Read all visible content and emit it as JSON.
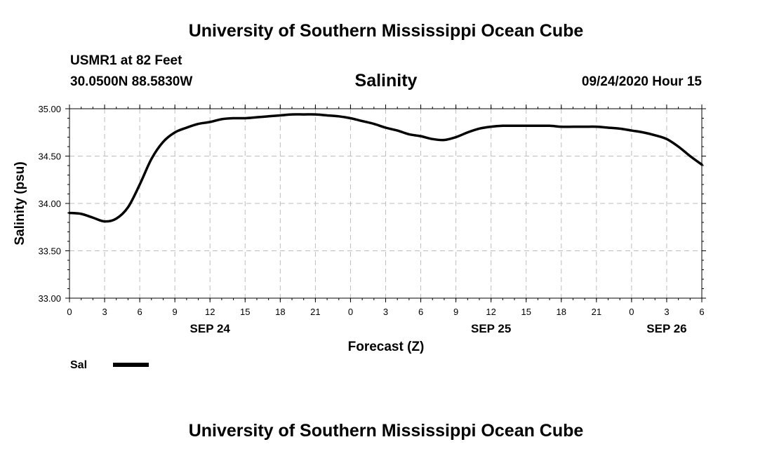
{
  "header": {
    "title": "University of Southern Mississippi Ocean Cube",
    "station": "USMR1 at 82 Feet",
    "coords": "30.0500N 88.5830W",
    "datetime": "09/24/2020 Hour 15"
  },
  "footer": {
    "title": "University of Southern Mississippi Ocean Cube"
  },
  "chart_data": {
    "type": "line",
    "title": "Salinity",
    "xlabel": "Forecast (Z)",
    "ylabel": "Salinity (psu)",
    "ylim": [
      33.0,
      35.0
    ],
    "xlim": [
      0,
      54
    ],
    "yticks": [
      "33.00",
      "33.50",
      "34.00",
      "34.50",
      "35.00"
    ],
    "ytick_values": [
      33.0,
      33.5,
      34.0,
      34.5,
      35.0
    ],
    "xticks": [
      "0",
      "3",
      "6",
      "9",
      "12",
      "15",
      "18",
      "21",
      "0",
      "3",
      "6",
      "9",
      "12",
      "15",
      "18",
      "21",
      "0",
      "3",
      "6"
    ],
    "date_labels": [
      {
        "label": "SEP 24",
        "hour": 12
      },
      {
        "label": "SEP 25",
        "hour": 36
      },
      {
        "label": "SEP 26",
        "hour": 51
      }
    ],
    "grid": true,
    "legend": {
      "position": "bottom-left",
      "entries": [
        {
          "name": "Sal",
          "color": "#000000"
        }
      ]
    },
    "series": [
      {
        "name": "Sal",
        "color": "#000000",
        "x": [
          0,
          1,
          2,
          3,
          4,
          5,
          6,
          7,
          8,
          9,
          10,
          11,
          12,
          13,
          14,
          15,
          16,
          17,
          18,
          19,
          20,
          21,
          22,
          23,
          24,
          25,
          26,
          27,
          28,
          29,
          30,
          31,
          32,
          33,
          34,
          35,
          36,
          37,
          38,
          39,
          40,
          41,
          42,
          43,
          44,
          45,
          46,
          47,
          48,
          49,
          50,
          51,
          52,
          53,
          54
        ],
        "values": [
          33.9,
          33.89,
          33.85,
          33.81,
          33.84,
          33.96,
          34.2,
          34.47,
          34.65,
          34.75,
          34.8,
          34.84,
          34.86,
          34.89,
          34.9,
          34.9,
          34.91,
          34.92,
          34.93,
          34.94,
          34.94,
          34.94,
          34.93,
          34.92,
          34.9,
          34.87,
          34.84,
          34.8,
          34.77,
          34.73,
          34.71,
          34.68,
          34.67,
          34.7,
          34.75,
          34.79,
          34.81,
          34.82,
          34.82,
          34.82,
          34.82,
          34.82,
          34.81,
          34.81,
          34.81,
          34.81,
          34.8,
          34.79,
          34.77,
          34.75,
          34.72,
          34.68,
          34.6,
          34.5,
          34.41
        ]
      }
    ]
  }
}
